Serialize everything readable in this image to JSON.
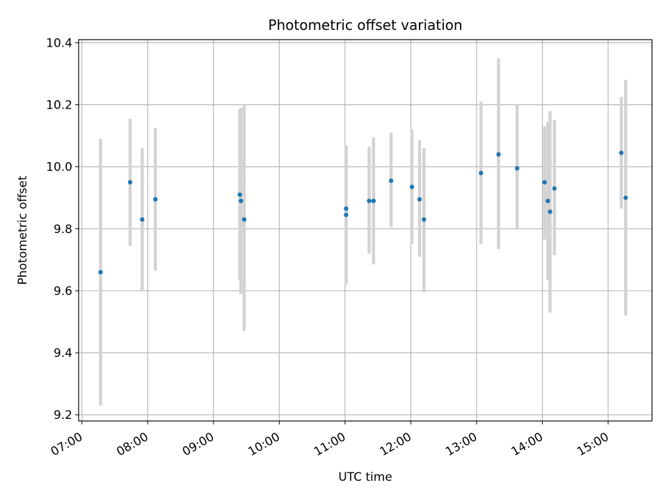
{
  "chart_data": {
    "type": "scatter",
    "title": "Photometric offset variation",
    "xlabel": "UTC time",
    "ylabel": "Photometric offset",
    "x_tick_labels": [
      "07:00",
      "08:00",
      "09:00",
      "10:00",
      "11:00",
      "12:00",
      "13:00",
      "14:00",
      "15:00"
    ],
    "y_tick_labels": [
      "9.2",
      "9.4",
      "9.6",
      "9.8",
      "10.0",
      "10.2",
      "10.4"
    ],
    "y_ticks": [
      9.2,
      9.4,
      9.6,
      9.8,
      10.0,
      10.2,
      10.4
    ],
    "xlim": [
      "06:57",
      "15:40"
    ],
    "ylim": [
      9.18,
      10.41
    ],
    "grid": true,
    "colors": {
      "points": "#1f77b4",
      "errorbars": "#d3d3d3",
      "grid": "#b0b0b0"
    },
    "points": [
      {
        "x": "07:17",
        "y": 9.66,
        "ymin": 9.23,
        "ymax": 10.09
      },
      {
        "x": "07:44",
        "y": 9.95,
        "ymin": 9.745,
        "ymax": 10.155
      },
      {
        "x": "07:55",
        "y": 9.83,
        "ymin": 9.6,
        "ymax": 10.06
      },
      {
        "x": "08:07",
        "y": 9.895,
        "ymin": 9.665,
        "ymax": 10.125
      },
      {
        "x": "09:24",
        "y": 9.91,
        "ymin": 9.635,
        "ymax": 10.185
      },
      {
        "x": "09:25",
        "y": 9.89,
        "ymin": 9.59,
        "ymax": 10.19
      },
      {
        "x": "09:28",
        "y": 9.83,
        "ymin": 9.47,
        "ymax": 10.2
      },
      {
        "x": "11:01",
        "y": 9.865,
        "ymin": 9.65,
        "ymax": 10.04
      },
      {
        "x": "11:01",
        "y": 9.845,
        "ymin": 9.62,
        "ymax": 10.07
      },
      {
        "x": "11:22",
        "y": 9.89,
        "ymin": 9.72,
        "ymax": 10.065
      },
      {
        "x": "11:26",
        "y": 9.89,
        "ymin": 9.685,
        "ymax": 10.095
      },
      {
        "x": "11:42",
        "y": 9.955,
        "ymin": 9.805,
        "ymax": 10.11
      },
      {
        "x": "12:01",
        "y": 9.935,
        "ymin": 9.75,
        "ymax": 10.12
      },
      {
        "x": "12:08",
        "y": 9.895,
        "ymin": 9.71,
        "ymax": 10.085
      },
      {
        "x": "12:12",
        "y": 9.83,
        "ymin": 9.595,
        "ymax": 10.06
      },
      {
        "x": "13:04",
        "y": 9.98,
        "ymin": 9.75,
        "ymax": 10.21
      },
      {
        "x": "13:20",
        "y": 10.04,
        "ymin": 9.735,
        "ymax": 10.35
      },
      {
        "x": "13:37",
        "y": 9.995,
        "ymin": 9.8,
        "ymax": 10.2
      },
      {
        "x": "14:02",
        "y": 9.95,
        "ymin": 9.765,
        "ymax": 10.13
      },
      {
        "x": "14:05",
        "y": 9.89,
        "ymin": 9.635,
        "ymax": 10.145
      },
      {
        "x": "14:07",
        "y": 9.855,
        "ymin": 9.53,
        "ymax": 10.18
      },
      {
        "x": "14:11",
        "y": 9.93,
        "ymin": 9.715,
        "ymax": 10.15
      },
      {
        "x": "15:12",
        "y": 10.045,
        "ymin": 9.865,
        "ymax": 10.225
      },
      {
        "x": "15:16",
        "y": 9.9,
        "ymin": 9.52,
        "ymax": 10.28
      }
    ]
  }
}
